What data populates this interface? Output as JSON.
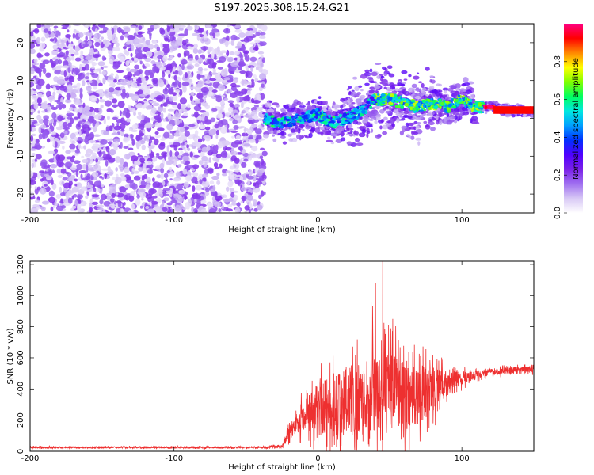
{
  "title": "S197.2025.308.15.24.G21",
  "chart_data": [
    {
      "type": "heatmap",
      "name": "spectrogram",
      "xlabel": "Height of straight line (km)",
      "ylabel": "Frequency (Hz)",
      "xlim": [
        -200,
        150
      ],
      "ylim": [
        -25,
        25
      ],
      "xticks": [
        -200,
        -100,
        0,
        100
      ],
      "yticks": [
        -20,
        -10,
        0,
        10,
        20
      ],
      "colorbar": {
        "label": "Normalized spectral amplitude",
        "range": [
          0,
          1
        ],
        "ticks": [
          0.0,
          0.2,
          0.4,
          0.6,
          0.8
        ],
        "tick_labels": [
          "0.0",
          "0.2",
          "0.4",
          "0.6",
          "0.8"
        ],
        "colormap": [
          "#ffffff",
          "#d8c8f5",
          "#a070f0",
          "#7a20e8",
          "#5000ff",
          "#0030ff",
          "#00a0ff",
          "#00e8e0",
          "#00ff60",
          "#80ff00",
          "#ffff00",
          "#ff8800",
          "#ff0000",
          "#ff0080"
        ]
      },
      "regions": [
        {
          "description": "noise",
          "x": [
            -200,
            -37
          ],
          "y": [
            -25,
            25
          ],
          "amplitude": [
            0.05,
            0.18
          ]
        },
        {
          "description": "signal track",
          "x": [
            -37,
            150
          ],
          "amplitude": [
            0.1,
            1.0
          ]
        }
      ],
      "track_center_hz": [
        {
          "x": -37,
          "y": 0
        },
        {
          "x": -30,
          "y": -1
        },
        {
          "x": -20,
          "y": -1
        },
        {
          "x": -10,
          "y": 0
        },
        {
          "x": 0,
          "y": 1
        },
        {
          "x": 10,
          "y": -1
        },
        {
          "x": 20,
          "y": 0
        },
        {
          "x": 30,
          "y": 2
        },
        {
          "x": 40,
          "y": 5
        },
        {
          "x": 50,
          "y": 5
        },
        {
          "x": 60,
          "y": 4
        },
        {
          "x": 70,
          "y": 3
        },
        {
          "x": 80,
          "y": 4
        },
        {
          "x": 90,
          "y": 3
        },
        {
          "x": 100,
          "y": 5
        },
        {
          "x": 110,
          "y": 3
        },
        {
          "x": 120,
          "y": 3
        },
        {
          "x": 135,
          "y": 2
        },
        {
          "x": 150,
          "y": 2
        }
      ]
    },
    {
      "type": "line",
      "name": "snr",
      "xlabel": "Height of straight line (km)",
      "ylabel": "SNR (10 * v/v)",
      "xlim": [
        -200,
        150
      ],
      "ylim": [
        0,
        1220
      ],
      "xticks": [
        -200,
        -100,
        0,
        100
      ],
      "yticks": [
        0,
        200,
        400,
        600,
        800,
        1000,
        1200
      ],
      "line_color": "#ee3030",
      "series": [
        {
          "name": "SNR",
          "x": [
            -200,
            -180,
            -160,
            -140,
            -120,
            -100,
            -80,
            -60,
            -40,
            -25,
            -20,
            -15,
            -10,
            -5,
            0,
            5,
            10,
            15,
            20,
            25,
            30,
            35,
            40,
            45,
            50,
            55,
            60,
            65,
            70,
            75,
            80,
            85,
            90,
            95,
            100,
            105,
            110,
            115,
            120,
            125,
            130,
            135,
            140,
            145,
            150
          ],
          "mean": [
            25,
            25,
            25,
            25,
            25,
            25,
            25,
            25,
            25,
            30,
            120,
            180,
            220,
            250,
            270,
            280,
            290,
            300,
            320,
            330,
            340,
            360,
            370,
            380,
            390,
            380,
            370,
            360,
            360,
            380,
            400,
            420,
            440,
            450,
            470,
            480,
            490,
            500,
            510,
            510,
            520,
            520,
            520,
            525,
            530
          ],
          "spread": [
            10,
            10,
            10,
            10,
            10,
            10,
            10,
            10,
            10,
            20,
            80,
            130,
            180,
            240,
            300,
            330,
            350,
            370,
            390,
            400,
            410,
            430,
            440,
            450,
            450,
            430,
            400,
            370,
            340,
            300,
            260,
            200,
            150,
            110,
            80,
            60,
            50,
            45,
            40,
            40,
            40,
            40,
            40,
            40,
            40
          ],
          "peaks": [
            {
              "x": 45,
              "y": 1220
            },
            {
              "x": 37,
              "y": 960
            },
            {
              "x": 38,
              "y": 930
            },
            {
              "x": 40,
              "y": 1080
            },
            {
              "x": 52,
              "y": 850
            }
          ]
        }
      ]
    }
  ]
}
